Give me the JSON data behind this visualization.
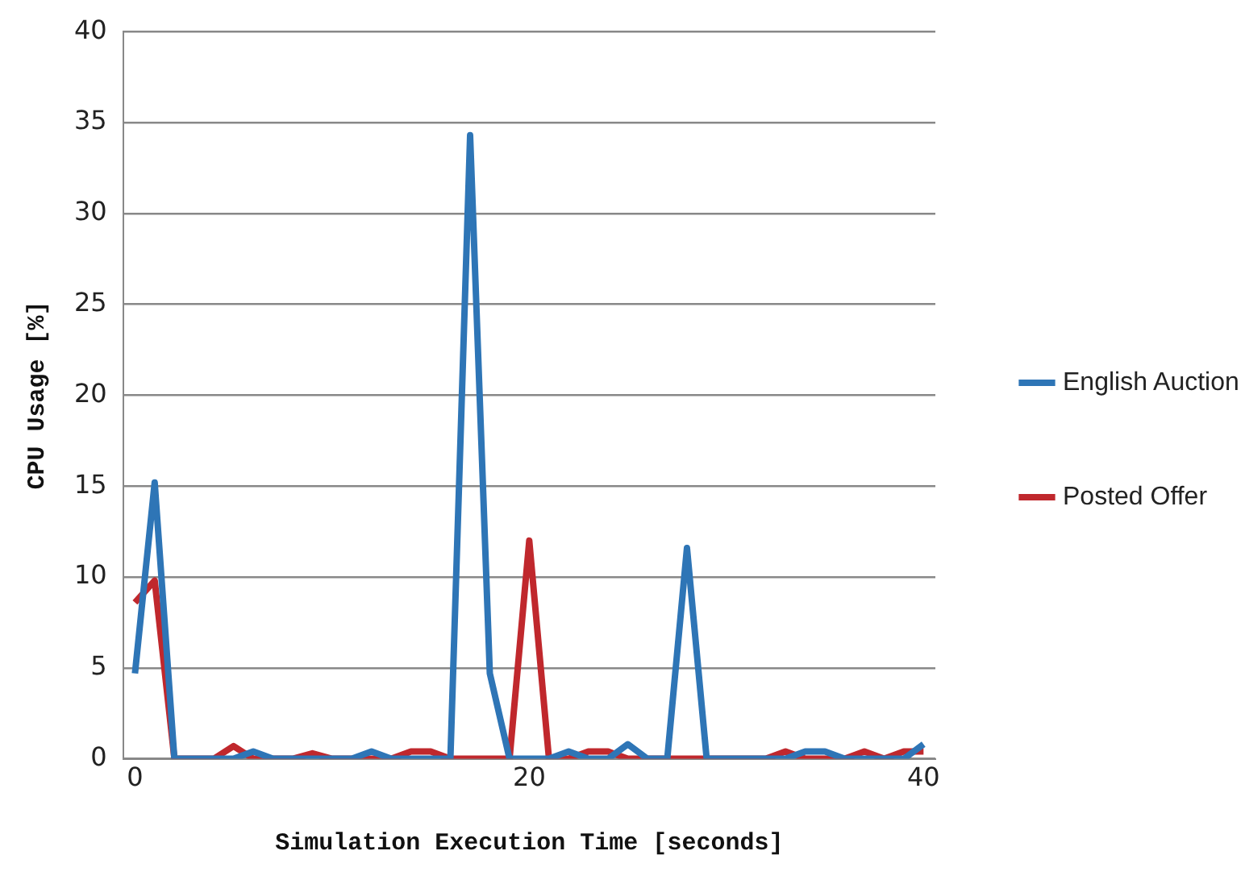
{
  "chart_data": {
    "type": "line",
    "xlabel": "Simulation Execution Time [seconds]",
    "ylabel": "CPU Usage [%]",
    "x": [
      0,
      1,
      2,
      3,
      4,
      5,
      6,
      7,
      8,
      9,
      10,
      11,
      12,
      13,
      14,
      15,
      16,
      17,
      18,
      19,
      20,
      21,
      22,
      23,
      24,
      25,
      26,
      27,
      28,
      29,
      30,
      31,
      32,
      33,
      34,
      35,
      36,
      37,
      38,
      39,
      40
    ],
    "series": [
      {
        "name": "English Auction",
        "color": "#2e75b6",
        "values": [
          4.7,
          15.2,
          0,
          0,
          0,
          0,
          0.4,
          0,
          0,
          0,
          0,
          0,
          0.4,
          0,
          0,
          0,
          0,
          34.3,
          4.7,
          0,
          0,
          0,
          0.4,
          0,
          0,
          0.8,
          0,
          0,
          11.6,
          0,
          0,
          0,
          0,
          0,
          0.4,
          0.4,
          0,
          0,
          0,
          0,
          0.8
        ]
      },
      {
        "name": "Posted Offer",
        "color": "#c0282d",
        "values": [
          8.6,
          9.8,
          0,
          0,
          0,
          0.7,
          0,
          0,
          0,
          0.3,
          0,
          0,
          0,
          0,
          0.4,
          0.4,
          0,
          0,
          0,
          0,
          12.0,
          0,
          0,
          0.4,
          0.4,
          0,
          0,
          0,
          0,
          0,
          0,
          0,
          0,
          0.4,
          0,
          0,
          0,
          0.4,
          0,
          0.4,
          0.4
        ]
      }
    ],
    "xlim": [
      -0.6,
      40.6
    ],
    "xticks": [
      0,
      20,
      40
    ],
    "ylim": [
      0,
      40
    ],
    "yticks": [
      0,
      5,
      10,
      15,
      20,
      25,
      30,
      35,
      40
    ],
    "grid": "y",
    "legend": "right",
    "marker": "none",
    "line_style": "solid"
  }
}
